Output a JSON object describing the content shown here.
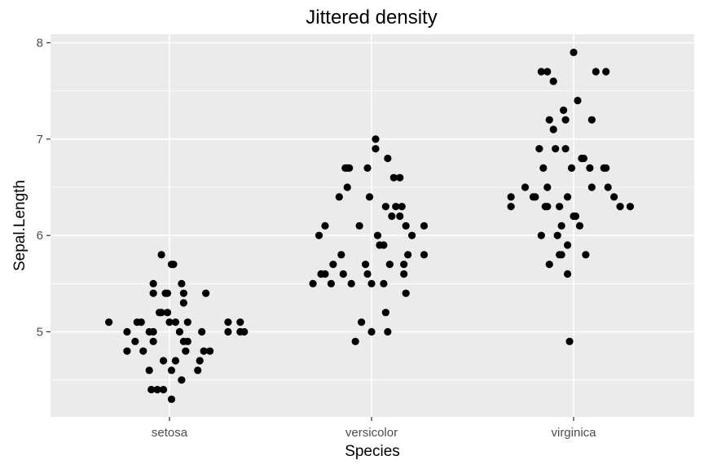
{
  "chart_data": {
    "type": "scatter",
    "title": "Jittered density",
    "xlabel": "Species",
    "ylabel": "Sepal.Length",
    "categories": [
      "setosa",
      "versicolor",
      "virginica"
    ],
    "yticks": [
      5,
      6,
      7,
      8
    ],
    "ylim": [
      4.2,
      8.05
    ],
    "grid": true,
    "panel_color": "#ebebeb",
    "point_color": "#000000",
    "points": [
      {
        "x": -0.3,
        "y": 5.1
      },
      {
        "x": -0.21,
        "y": 5.0
      },
      {
        "x": -0.21,
        "y": 4.8
      },
      {
        "x": -0.17,
        "y": 4.9
      },
      {
        "x": -0.16,
        "y": 5.1
      },
      {
        "x": -0.14,
        "y": 5.1
      },
      {
        "x": -0.13,
        "y": 4.8
      },
      {
        "x": -0.1,
        "y": 5.0
      },
      {
        "x": -0.1,
        "y": 4.6
      },
      {
        "x": -0.09,
        "y": 4.4
      },
      {
        "x": -0.08,
        "y": 5.0
      },
      {
        "x": -0.08,
        "y": 4.9
      },
      {
        "x": -0.08,
        "y": 5.5
      },
      {
        "x": -0.08,
        "y": 5.4
      },
      {
        "x": -0.06,
        "y": 4.4
      },
      {
        "x": -0.05,
        "y": 5.2
      },
      {
        "x": -0.04,
        "y": 5.2
      },
      {
        "x": -0.04,
        "y": 5.8
      },
      {
        "x": -0.03,
        "y": 4.4
      },
      {
        "x": -0.03,
        "y": 4.7
      },
      {
        "x": -0.02,
        "y": 5.4
      },
      {
        "x": -0.01,
        "y": 5.2
      },
      {
        "x": -0.01,
        "y": 5.4
      },
      {
        "x": 0.0,
        "y": 5.1
      },
      {
        "x": 0.01,
        "y": 4.6
      },
      {
        "x": 0.01,
        "y": 4.3
      },
      {
        "x": 0.01,
        "y": 5.7
      },
      {
        "x": 0.02,
        "y": 5.7
      },
      {
        "x": 0.03,
        "y": 5.1
      },
      {
        "x": 0.03,
        "y": 4.7
      },
      {
        "x": 0.05,
        "y": 5.0
      },
      {
        "x": 0.06,
        "y": 5.5
      },
      {
        "x": 0.06,
        "y": 4.5
      },
      {
        "x": 0.07,
        "y": 4.9
      },
      {
        "x": 0.07,
        "y": 5.4
      },
      {
        "x": 0.07,
        "y": 5.3
      },
      {
        "x": 0.08,
        "y": 4.8
      },
      {
        "x": 0.09,
        "y": 4.9
      },
      {
        "x": 0.09,
        "y": 5.1
      },
      {
        "x": 0.14,
        "y": 4.6
      },
      {
        "x": 0.15,
        "y": 4.7
      },
      {
        "x": 0.16,
        "y": 5.0
      },
      {
        "x": 0.17,
        "y": 4.8
      },
      {
        "x": 0.18,
        "y": 5.4
      },
      {
        "x": 0.2,
        "y": 4.8
      },
      {
        "x": 0.29,
        "y": 5.1
      },
      {
        "x": 0.29,
        "y": 5.0
      },
      {
        "x": 0.35,
        "y": 5.1
      },
      {
        "x": 0.35,
        "y": 5.0
      },
      {
        "x": 0.37,
        "y": 5.0
      },
      {
        "x": 0.71,
        "y": 5.5
      },
      {
        "x": 0.74,
        "y": 6.0
      },
      {
        "x": 0.75,
        "y": 5.6
      },
      {
        "x": 0.77,
        "y": 5.6
      },
      {
        "x": 0.77,
        "y": 6.1
      },
      {
        "x": 0.8,
        "y": 5.5
      },
      {
        "x": 0.81,
        "y": 5.7
      },
      {
        "x": 0.84,
        "y": 6.4
      },
      {
        "x": 0.85,
        "y": 5.8
      },
      {
        "x": 0.86,
        "y": 5.6
      },
      {
        "x": 0.87,
        "y": 6.7
      },
      {
        "x": 0.88,
        "y": 6.5
      },
      {
        "x": 0.88,
        "y": 6.7
      },
      {
        "x": 0.89,
        "y": 6.7
      },
      {
        "x": 0.9,
        "y": 5.5
      },
      {
        "x": 0.92,
        "y": 4.9
      },
      {
        "x": 0.94,
        "y": 6.1
      },
      {
        "x": 0.95,
        "y": 5.1
      },
      {
        "x": 0.97,
        "y": 5.7
      },
      {
        "x": 0.98,
        "y": 5.6
      },
      {
        "x": 0.98,
        "y": 6.7
      },
      {
        "x": 0.99,
        "y": 6.4
      },
      {
        "x": 1.0,
        "y": 5.0
      },
      {
        "x": 1.0,
        "y": 5.5
      },
      {
        "x": 1.02,
        "y": 6.9
      },
      {
        "x": 1.02,
        "y": 7.0
      },
      {
        "x": 1.03,
        "y": 6.0
      },
      {
        "x": 1.04,
        "y": 5.9
      },
      {
        "x": 1.06,
        "y": 5.9
      },
      {
        "x": 1.06,
        "y": 5.5
      },
      {
        "x": 1.07,
        "y": 6.3
      },
      {
        "x": 1.07,
        "y": 5.2
      },
      {
        "x": 1.08,
        "y": 6.8
      },
      {
        "x": 1.08,
        "y": 5.0
      },
      {
        "x": 1.09,
        "y": 5.7
      },
      {
        "x": 1.1,
        "y": 6.2
      },
      {
        "x": 1.11,
        "y": 6.6
      },
      {
        "x": 1.12,
        "y": 6.3
      },
      {
        "x": 1.14,
        "y": 6.2
      },
      {
        "x": 1.14,
        "y": 6.6
      },
      {
        "x": 1.15,
        "y": 6.3
      },
      {
        "x": 1.16,
        "y": 5.7
      },
      {
        "x": 1.16,
        "y": 5.6
      },
      {
        "x": 1.17,
        "y": 5.4
      },
      {
        "x": 1.17,
        "y": 6.1
      },
      {
        "x": 1.18,
        "y": 5.8
      },
      {
        "x": 1.2,
        "y": 6.0
      },
      {
        "x": 1.26,
        "y": 6.1
      },
      {
        "x": 1.26,
        "y": 5.8
      },
      {
        "x": 1.69,
        "y": 6.4
      },
      {
        "x": 1.69,
        "y": 6.3
      },
      {
        "x": 1.76,
        "y": 6.5
      },
      {
        "x": 1.8,
        "y": 6.4
      },
      {
        "x": 1.81,
        "y": 6.4
      },
      {
        "x": 1.83,
        "y": 6.9
      },
      {
        "x": 1.84,
        "y": 7.7
      },
      {
        "x": 1.84,
        "y": 6.0
      },
      {
        "x": 1.85,
        "y": 6.7
      },
      {
        "x": 1.86,
        "y": 6.3
      },
      {
        "x": 1.87,
        "y": 7.7
      },
      {
        "x": 1.87,
        "y": 6.3
      },
      {
        "x": 1.87,
        "y": 6.5
      },
      {
        "x": 1.88,
        "y": 7.2
      },
      {
        "x": 1.88,
        "y": 5.7
      },
      {
        "x": 1.9,
        "y": 7.6
      },
      {
        "x": 1.9,
        "y": 7.1
      },
      {
        "x": 1.91,
        "y": 6.9
      },
      {
        "x": 1.92,
        "y": 6.0
      },
      {
        "x": 1.93,
        "y": 6.3
      },
      {
        "x": 1.93,
        "y": 5.8
      },
      {
        "x": 1.94,
        "y": 5.8
      },
      {
        "x": 1.94,
        "y": 6.1
      },
      {
        "x": 1.95,
        "y": 7.3
      },
      {
        "x": 1.96,
        "y": 7.2
      },
      {
        "x": 1.96,
        "y": 6.9
      },
      {
        "x": 1.97,
        "y": 6.4
      },
      {
        "x": 1.97,
        "y": 5.9
      },
      {
        "x": 1.97,
        "y": 5.6
      },
      {
        "x": 1.98,
        "y": 4.9
      },
      {
        "x": 1.99,
        "y": 6.7
      },
      {
        "x": 2.0,
        "y": 7.9
      },
      {
        "x": 2.0,
        "y": 6.2
      },
      {
        "x": 2.01,
        "y": 6.2
      },
      {
        "x": 2.02,
        "y": 7.4
      },
      {
        "x": 2.03,
        "y": 6.1
      },
      {
        "x": 2.04,
        "y": 6.8
      },
      {
        "x": 2.05,
        "y": 6.8
      },
      {
        "x": 2.06,
        "y": 5.8
      },
      {
        "x": 2.08,
        "y": 6.7
      },
      {
        "x": 2.09,
        "y": 7.2
      },
      {
        "x": 2.09,
        "y": 6.5
      },
      {
        "x": 2.11,
        "y": 7.7
      },
      {
        "x": 2.15,
        "y": 6.7
      },
      {
        "x": 2.16,
        "y": 7.7
      },
      {
        "x": 2.16,
        "y": 6.7
      },
      {
        "x": 2.17,
        "y": 6.5
      },
      {
        "x": 2.2,
        "y": 6.4
      },
      {
        "x": 2.23,
        "y": 6.3
      },
      {
        "x": 2.28,
        "y": 6.3
      }
    ]
  }
}
